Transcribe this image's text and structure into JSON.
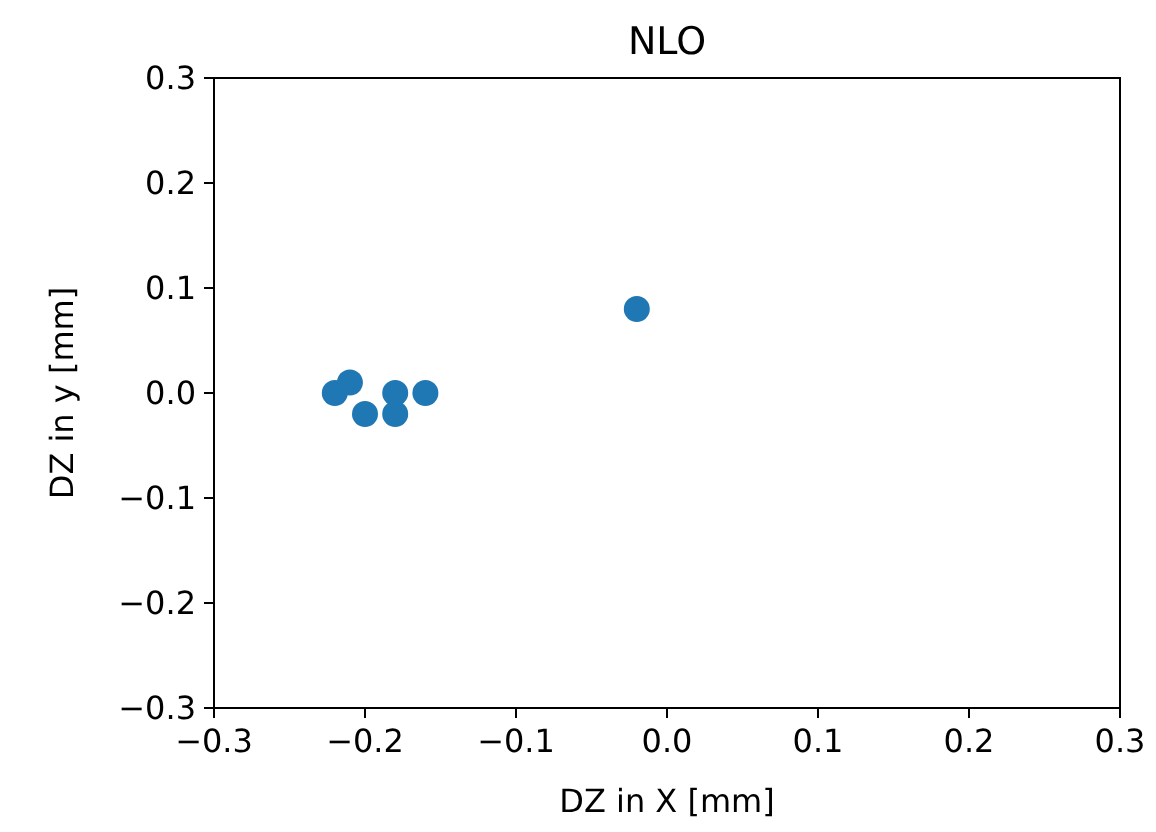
{
  "chart_data": {
    "type": "scatter",
    "title": "NLO",
    "xlabel": "DZ in X [mm]",
    "ylabel": "DZ in y [mm]",
    "x": [
      -0.22,
      -0.21,
      -0.2,
      -0.18,
      -0.18,
      -0.16,
      -0.02
    ],
    "series": [
      {
        "color": "#1f77b4",
        "values": [
          0,
          0.01,
          -0.02,
          0,
          -0.02,
          0,
          0.08
        ]
      }
    ],
    "xlim": [
      -0.3,
      0.3
    ],
    "ylim": [
      -0.3,
      0.3
    ],
    "xticks": [
      {
        "value": -0.3,
        "label": "−0.3"
      },
      {
        "value": -0.2,
        "label": "−0.2"
      },
      {
        "value": -0.1,
        "label": "−0.1"
      },
      {
        "value": 0,
        "label": "0.0"
      },
      {
        "value": 0.1,
        "label": "0.1"
      },
      {
        "value": 0.2,
        "label": "0.2"
      },
      {
        "value": 0.3,
        "label": "0.3"
      }
    ],
    "yticks": [
      {
        "value": -0.3,
        "label": "−0.3"
      },
      {
        "value": -0.2,
        "label": "−0.2"
      },
      {
        "value": -0.1,
        "label": "−0.1"
      },
      {
        "value": 0,
        "label": "0.0"
      },
      {
        "value": 0.1,
        "label": "0.1"
      },
      {
        "value": 0.2,
        "label": "0.2"
      },
      {
        "value": 0.3,
        "label": "0.3"
      }
    ],
    "marker": "circle",
    "grid": false
  }
}
